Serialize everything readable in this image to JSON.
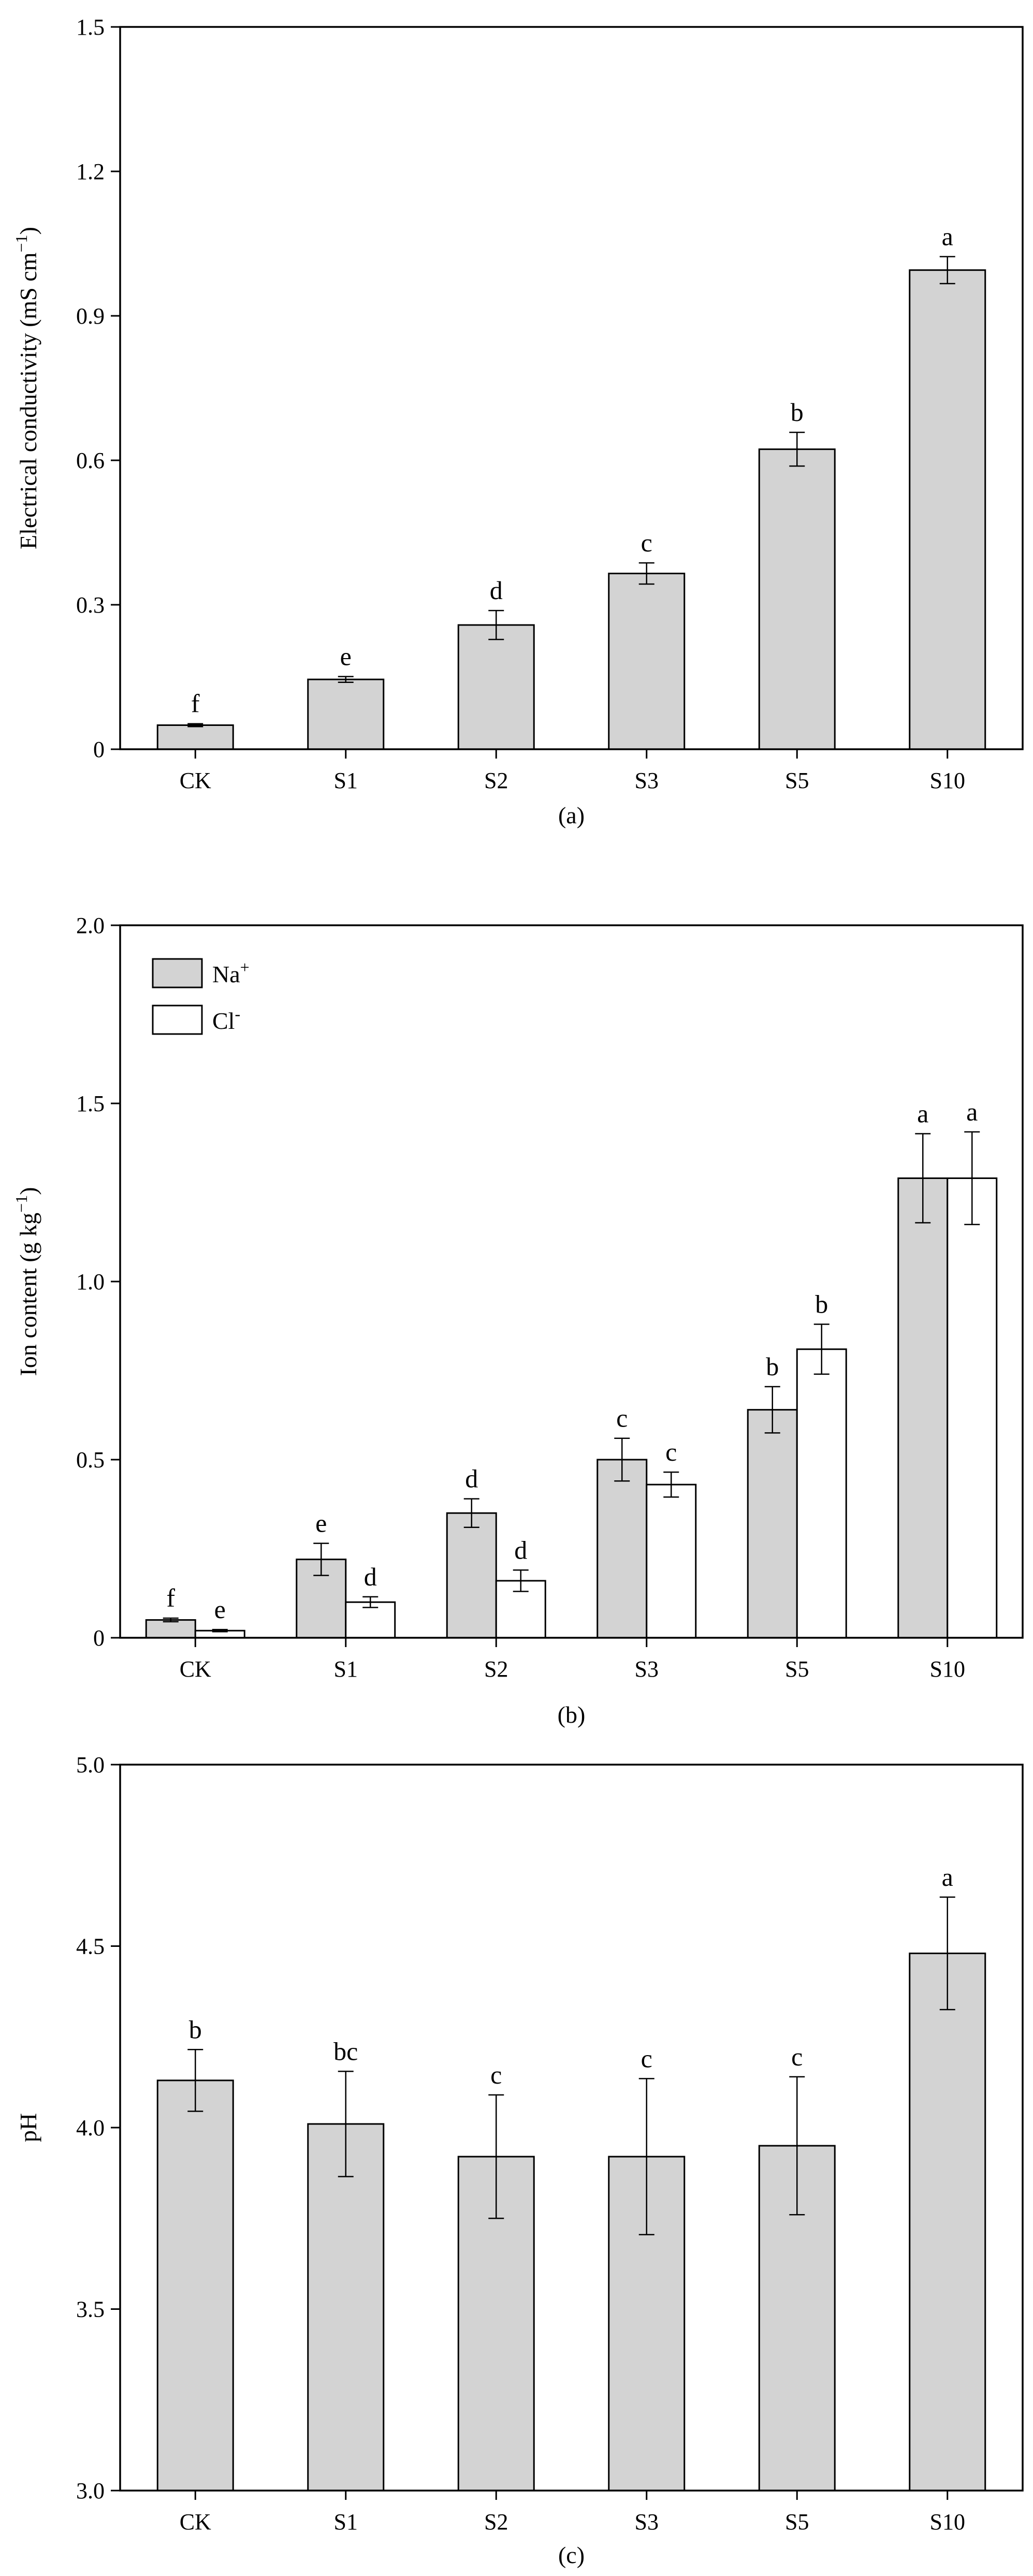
{
  "chart_data": [
    {
      "type": "bar",
      "panel_label": "(a)",
      "categories": [
        "CK",
        "S1",
        "S2",
        "S3",
        "S5",
        "S10"
      ],
      "ylabel": "Electrical conductivity (mS cm",
      "ylabel_sup": "−1",
      "ylabel_tail": ")",
      "ylim": [
        0,
        1.5
      ],
      "yticks": [
        0,
        0.3,
        0.6,
        0.9,
        1.2,
        1.5
      ],
      "ytick_labels": [
        "0",
        "0.3",
        "0.6",
        "0.9",
        "1.2",
        "1.5"
      ],
      "grid": false,
      "series": [
        {
          "fill": "#d3d3d3",
          "values": [
            0.05,
            0.145,
            0.258,
            0.365,
            0.623,
            0.995
          ],
          "errors": [
            0.003,
            0.006,
            0.03,
            0.022,
            0.035,
            0.028
          ],
          "letters": [
            "f",
            "e",
            "d",
            "c",
            "b",
            "a"
          ]
        }
      ]
    },
    {
      "type": "bar",
      "panel_label": "(b)",
      "categories": [
        "CK",
        "S1",
        "S2",
        "S3",
        "S5",
        "S10"
      ],
      "ylabel": "Ion content (g kg",
      "ylabel_sup": "−1",
      "ylabel_tail": ")",
      "ylim": [
        0,
        2.0
      ],
      "yticks": [
        0,
        0.5,
        1.0,
        1.5,
        2.0
      ],
      "ytick_labels": [
        "0",
        "0.5",
        "1.0",
        "1.5",
        "2.0"
      ],
      "grid": false,
      "legend": "top-left",
      "series": [
        {
          "name": "Na",
          "name_sup": "+",
          "fill": "#d3d3d3",
          "values": [
            0.05,
            0.22,
            0.35,
            0.5,
            0.64,
            1.29
          ],
          "errors": [
            0.005,
            0.045,
            0.04,
            0.06,
            0.065,
            0.125
          ],
          "letters": [
            "f",
            "e",
            "d",
            "c",
            "b",
            "a"
          ]
        },
        {
          "name": "Cl",
          "name_sup": "-",
          "fill": "#ffffff",
          "values": [
            0.02,
            0.1,
            0.16,
            0.43,
            0.81,
            1.29
          ],
          "errors": [
            0.003,
            0.015,
            0.03,
            0.035,
            0.07,
            0.13
          ],
          "letters": [
            "e",
            "d",
            "d",
            "c",
            "b",
            "a"
          ]
        }
      ]
    },
    {
      "type": "bar",
      "panel_label": "(c)",
      "categories": [
        "CK",
        "S1",
        "S2",
        "S3",
        "S5",
        "S10"
      ],
      "ylabel": "pH",
      "ylabel_sup": "",
      "ylabel_tail": "",
      "ylim": [
        3.0,
        5.0
      ],
      "yticks": [
        3.0,
        3.5,
        4.0,
        4.5,
        5.0
      ],
      "ytick_labels": [
        "3.0",
        "3.5",
        "4.0",
        "4.5",
        "5.0"
      ],
      "grid": false,
      "series": [
        {
          "fill": "#d3d3d3",
          "values": [
            4.13,
            4.01,
            3.92,
            3.92,
            3.95,
            4.48
          ],
          "errors": [
            0.085,
            0.145,
            0.17,
            0.215,
            0.19,
            0.155
          ],
          "letters": [
            "b",
            "bc",
            "c",
            "c",
            "c",
            "a"
          ]
        }
      ]
    }
  ]
}
